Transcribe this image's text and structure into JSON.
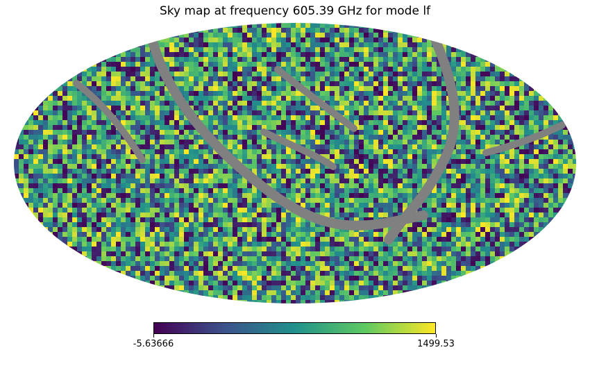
{
  "chart_data": {
    "type": "heatmap",
    "title": "Sky map at frequency 605.39 GHz for mode lf",
    "projection": "Mollweide",
    "colormap": "viridis",
    "colorbar": {
      "min": -5.63666,
      "max": 1499.53,
      "min_label": "-5.63666",
      "max_label": "1499.53",
      "stops": [
        "#440154",
        "#3b528b",
        "#21918c",
        "#5ec962",
        "#fde725"
      ]
    },
    "masked_color": "#808080",
    "masked_band_description": "grey masked streaks across the sky"
  }
}
